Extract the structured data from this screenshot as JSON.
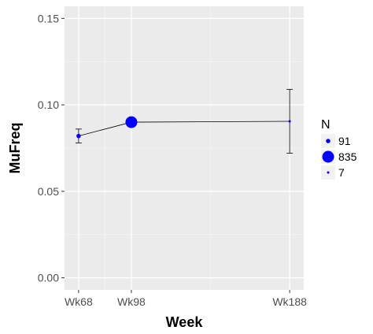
{
  "chart_data": {
    "type": "scatter",
    "xlabel": "Week",
    "ylabel": "MuFreq",
    "categories": [
      "Wk68",
      "Wk98",
      "Wk188"
    ],
    "x_weeks": [
      68,
      98,
      188
    ],
    "values": [
      0.082,
      0.09,
      0.0905
    ],
    "error_low": [
      0.078,
      null,
      0.072
    ],
    "error_high": [
      0.086,
      null,
      0.109
    ],
    "sizes": [
      91,
      835,
      7
    ],
    "yticks": [
      "0.00",
      "0.05",
      "0.10",
      "0.15"
    ],
    "ytick_values": [
      0.0,
      0.05,
      0.1,
      0.15
    ],
    "ylim": [
      -0.007,
      0.157
    ],
    "xlim": [
      60,
      196
    ],
    "grid": true,
    "connecting_line": true,
    "point_color": "#0000ff",
    "line_color": "#000000",
    "panel_background": "#ebebeb",
    "legend": {
      "title": "N",
      "position": "right",
      "entries": [
        "91",
        "835",
        "7"
      ]
    }
  }
}
